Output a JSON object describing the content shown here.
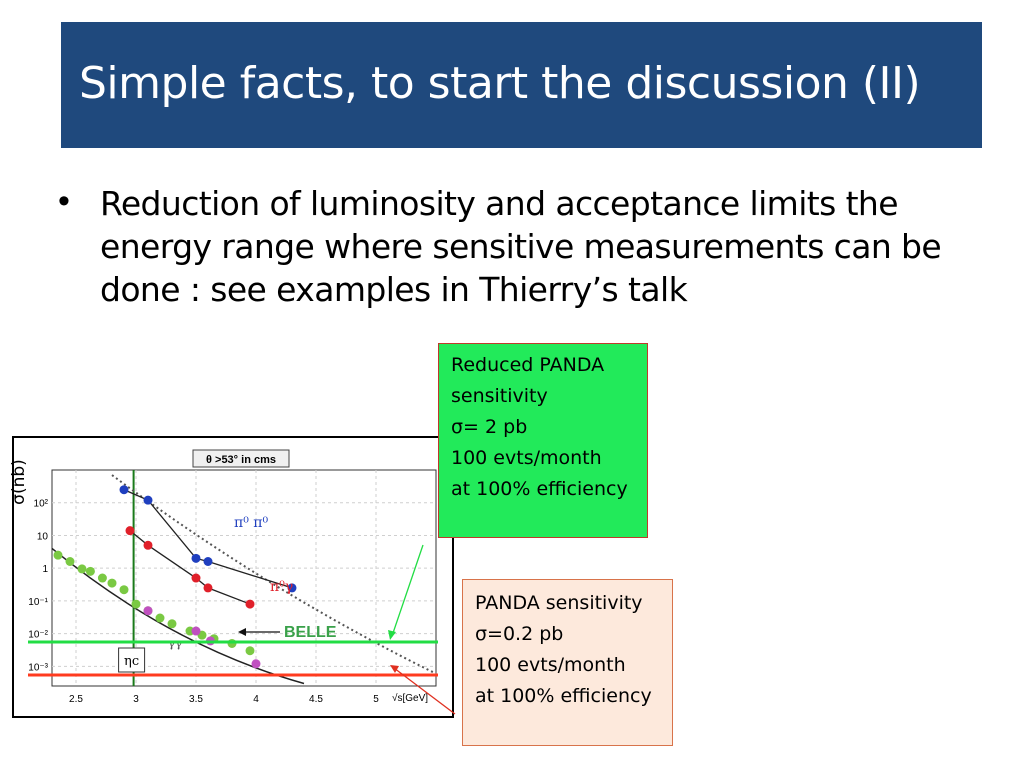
{
  "slide": {
    "title": "Simple facts, to start the discussion (II)",
    "bullet": "Reduction of luminosity and acceptance limits the energy range where sensitive measurements can be done : see examples in Thierry’s talk",
    "green_box": [
      "Reduced PANDA",
      "sensitivity",
      "σ= 2 pb",
      "100 evts/month",
      "at 100% efficiency"
    ],
    "peach_box": [
      "PANDA sensitivity",
      "σ=0.2 pb",
      "100 evts/month",
      "at 100% efficiency"
    ],
    "colors": {
      "title_bg": "#1f497d",
      "green_box": "#22ea5a",
      "peach_box": "#fde9dc",
      "green_line": "#22dd44",
      "red_line": "#ff3b1f"
    }
  },
  "chart_data": {
    "type": "scatter",
    "y_scale": "log",
    "xlim": [
      2.3,
      5.5
    ],
    "ylim_log10": [
      -3.6,
      3
    ],
    "x_ticks": [
      "2.5",
      "3",
      "3.5",
      "4",
      "4.5",
      "5"
    ],
    "y_ticks": [
      "10²",
      "10",
      "1",
      "10⁻¹",
      "10⁻²",
      "10⁻³"
    ],
    "ylabel": "σ(nb)",
    "xlabel": "√s[GeV]",
    "header_label": "θ >53° in cms",
    "eta_c_label": "ηc",
    "eta_c_x": 2.98,
    "series": [
      {
        "name": "π⁰ π⁰",
        "color": "#1f3fbf",
        "x": [
          2.9,
          3.1,
          3.5,
          3.6,
          4.3
        ],
        "y": [
          250,
          120,
          2,
          1.6,
          0.25
        ]
      },
      {
        "name": "π⁰γ",
        "color": "#e0202a",
        "x": [
          2.95,
          3.1,
          3.5,
          3.6,
          3.95
        ],
        "y": [
          14,
          5,
          0.5,
          0.25,
          0.08
        ]
      },
      {
        "name": "γγ",
        "color": "#7ac943",
        "x": [
          2.35,
          2.45,
          2.55,
          2.62,
          2.72,
          2.8,
          2.9,
          3.0,
          3.1,
          3.2,
          3.3,
          3.45,
          3.55,
          3.65,
          3.8,
          3.95
        ],
        "y": [
          2.5,
          1.6,
          0.95,
          0.8,
          0.5,
          0.35,
          0.22,
          0.08,
          0.05,
          0.03,
          0.02,
          0.012,
          0.009,
          0.007,
          0.005,
          0.003
        ]
      },
      {
        "name": "",
        "color": "#c050c0",
        "x": [
          3.1,
          3.5,
          3.62,
          4.0
        ],
        "y": [
          0.05,
          0.012,
          0.006,
          0.0012
        ]
      }
    ],
    "annotations": [
      "BELLE"
    ],
    "extra_label": "γγ",
    "thresholds": [
      {
        "name": "green",
        "y": 0.002,
        "color": "#22dd44"
      },
      {
        "name": "red",
        "y": 0.0002,
        "color": "#ff3b1f"
      }
    ]
  }
}
